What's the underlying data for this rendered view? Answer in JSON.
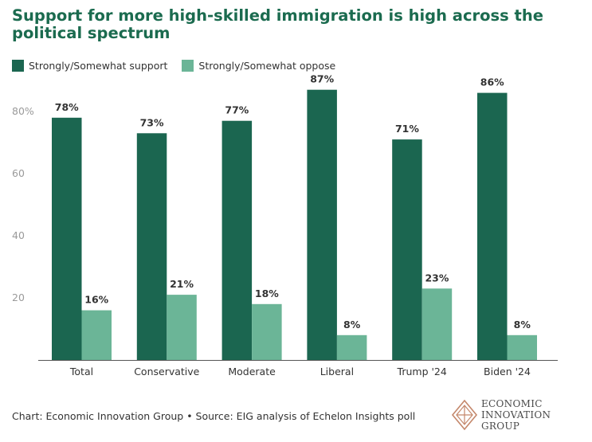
{
  "title": "Support for more high-skilled immigration is high across the political spectrum",
  "colors": {
    "support": "#1b6650",
    "oppose": "#6bb597",
    "title": "#1b6b4f",
    "axis_text": "#9a9a9a",
    "label_text": "#333333"
  },
  "legend": {
    "support_label": "Strongly/Somewhat support",
    "oppose_label": "Strongly/Somewhat oppose"
  },
  "chart_data": {
    "type": "bar",
    "categories": [
      "Total",
      "Conservative",
      "Moderate",
      "Liberal",
      "Trump '24",
      "Biden '24"
    ],
    "series": [
      {
        "name": "Strongly/Somewhat support",
        "values": [
          78,
          73,
          77,
          87,
          71,
          86
        ]
      },
      {
        "name": "Strongly/Somewhat oppose",
        "values": [
          16,
          21,
          18,
          8,
          23,
          8
        ]
      }
    ],
    "value_labels": [
      [
        "78%",
        "73%",
        "77%",
        "87%",
        "71%",
        "86%"
      ],
      [
        "16%",
        "21%",
        "18%",
        "8%",
        "23%",
        "8%"
      ]
    ],
    "yticks": [
      20,
      40,
      60,
      80
    ],
    "ytick_labels": [
      "20",
      "40",
      "60",
      "80%"
    ],
    "ylim": [
      0,
      90
    ],
    "grid": false,
    "legend_position": "top-left"
  },
  "footer": {
    "source": "Chart: Economic Innovation Group • Source: EIG analysis of Echelon Insights poll"
  },
  "logo": {
    "line1": "ECONOMIC",
    "line2": "INNOVATION",
    "line3": "GROUP"
  }
}
